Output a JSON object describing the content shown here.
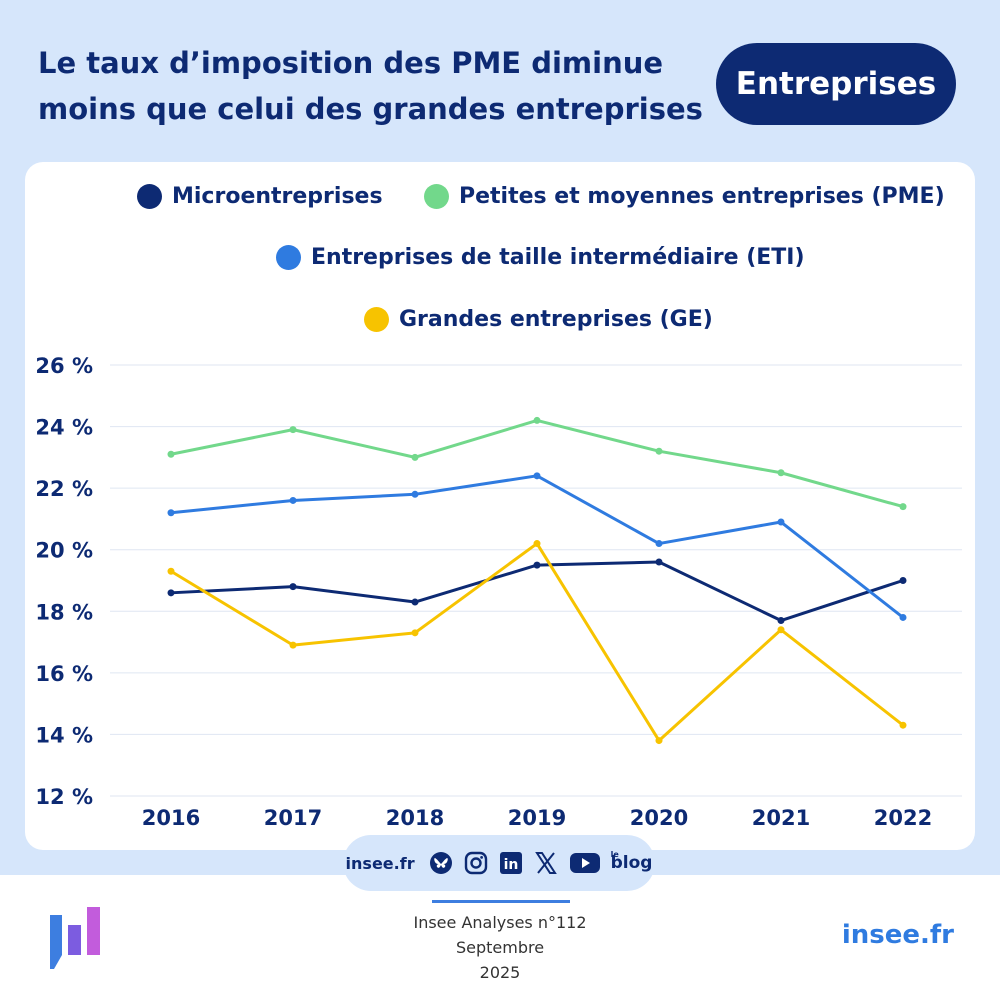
{
  "header": {
    "title_line1": "Le taux d’imposition des PME diminue",
    "title_line2": "moins que celui des grandes entreprises",
    "tag": "Entreprises"
  },
  "legend": [
    {
      "label": "Microentreprises",
      "color": "#0d2a73"
    },
    {
      "label": "Petites et moyennes entreprises (PME)",
      "color": "#72d88b"
    },
    {
      "label": "Entreprises de taille intermédiaire (ETI)",
      "color": "#2f7be0"
    },
    {
      "label": "Grandes entreprises (GE)",
      "color": "#f7c300"
    }
  ],
  "chart_data": {
    "type": "line",
    "title": "Le taux d’imposition des PME diminue moins que celui des grandes entreprises",
    "xlabel": "",
    "ylabel": "",
    "x": [
      "2016",
      "2017",
      "2018",
      "2019",
      "2020",
      "2021",
      "2022"
    ],
    "ylim": [
      12,
      26
    ],
    "yticks": [
      26,
      24,
      22,
      20,
      18,
      16,
      14,
      12
    ],
    "ytick_labels": [
      "26 %",
      "24 %",
      "22 %",
      "20 %",
      "18 %",
      "16 %",
      "14 %",
      "12 %"
    ],
    "grid": true,
    "legend_position": "top",
    "series": [
      {
        "name": "Microentreprises",
        "color": "#0d2a73",
        "values": [
          18.6,
          18.8,
          18.3,
          19.5,
          19.6,
          17.7,
          19.0
        ]
      },
      {
        "name": "Petites et moyennes entreprises (PME)",
        "color": "#72d88b",
        "values": [
          23.1,
          23.9,
          23.0,
          24.2,
          23.2,
          22.5,
          21.4
        ]
      },
      {
        "name": "Entreprises de taille intermédiaire (ETI)",
        "color": "#2f7be0",
        "values": [
          21.2,
          21.6,
          21.8,
          22.4,
          20.2,
          20.9,
          17.8
        ]
      },
      {
        "name": "Grandes entreprises (GE)",
        "color": "#f7c300",
        "values": [
          19.3,
          16.9,
          17.3,
          20.2,
          13.8,
          17.4,
          14.3
        ]
      }
    ]
  },
  "social": {
    "site": "insee.fr",
    "icons": [
      "bluesky-icon",
      "instagram-icon",
      "linkedin-icon",
      "x-icon",
      "youtube-icon",
      "blog-icon"
    ],
    "linkedin_text": "in",
    "blog_small": "le",
    "blog_text": "blog"
  },
  "footer": {
    "ref_line1": "Insee Analyses n°112",
    "ref_line2": "Septembre",
    "ref_line3": "2025",
    "site": "insee.fr",
    "logo_colors": [
      "#3d7ee0",
      "#7c5ce0",
      "#c25cdc"
    ]
  }
}
